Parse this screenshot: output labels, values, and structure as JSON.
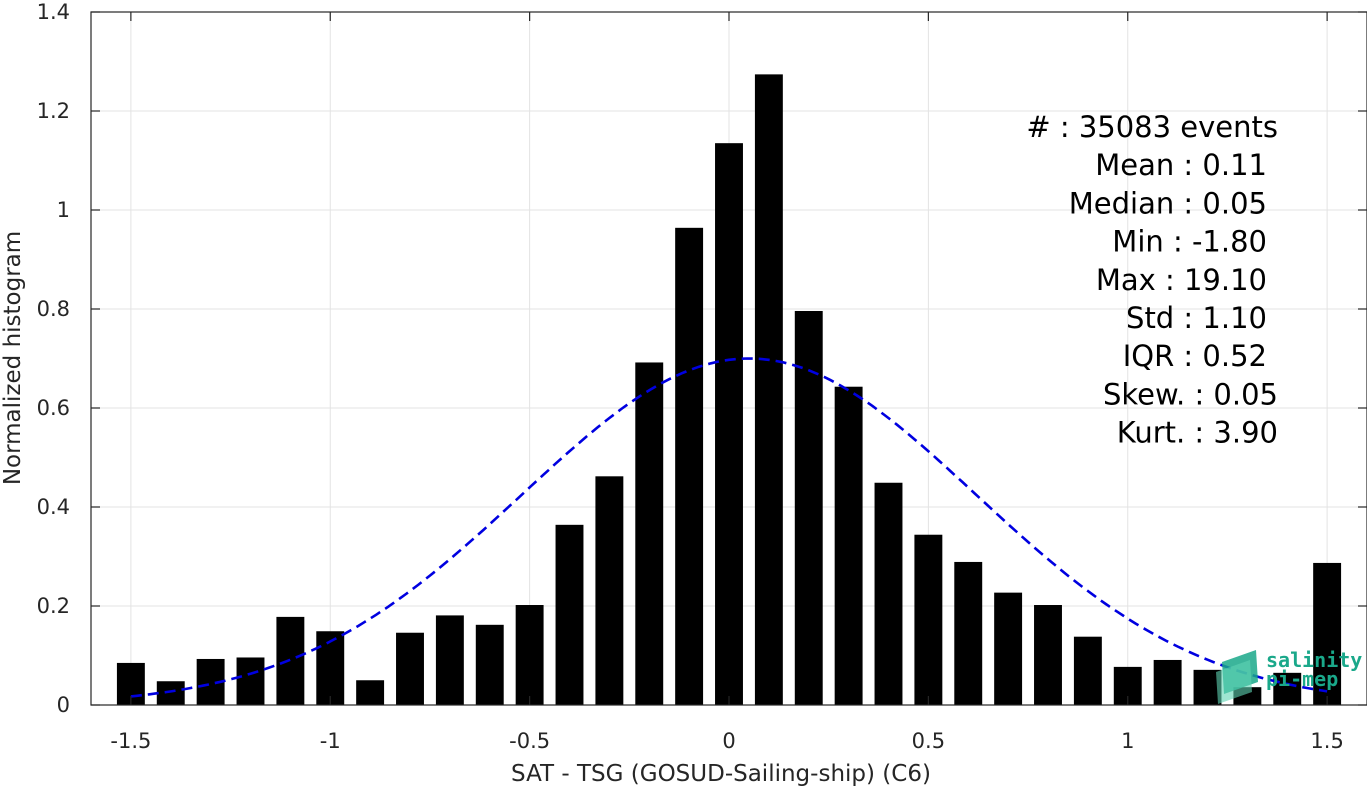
{
  "chart_data": {
    "type": "bar",
    "title": "",
    "xlabel": "SAT - TSG (GOSUD-Sailing-ship) (C6)",
    "ylabel": "Normalized histogram",
    "xlim": [
      -1.6,
      1.6
    ],
    "ylim": [
      0,
      1.4
    ],
    "xticks": [
      -1.5,
      -1,
      -0.5,
      0,
      0.5,
      1,
      1.5
    ],
    "xtick_labels": [
      "-1.5",
      "-1",
      "-0.5",
      "0",
      "0.5",
      "1",
      "1.5"
    ],
    "yticks": [
      0,
      0.2,
      0.4,
      0.6,
      0.8,
      1,
      1.2,
      1.4
    ],
    "ytick_labels": [
      "0",
      "0.2",
      "0.4",
      "0.6",
      "0.8",
      "1",
      "1.2",
      "1.4"
    ],
    "grid": true,
    "bar_color": "#000000",
    "bar_width": 0.07,
    "bins": [
      {
        "x": -1.5,
        "y": 0.085
      },
      {
        "x": -1.4,
        "y": 0.048
      },
      {
        "x": -1.3,
        "y": 0.093
      },
      {
        "x": -1.2,
        "y": 0.096
      },
      {
        "x": -1.1,
        "y": 0.178
      },
      {
        "x": -1.0,
        "y": 0.149
      },
      {
        "x": -0.9,
        "y": 0.05
      },
      {
        "x": -0.8,
        "y": 0.146
      },
      {
        "x": -0.7,
        "y": 0.181
      },
      {
        "x": -0.6,
        "y": 0.162
      },
      {
        "x": -0.5,
        "y": 0.202
      },
      {
        "x": -0.4,
        "y": 0.364
      },
      {
        "x": -0.3,
        "y": 0.462
      },
      {
        "x": -0.2,
        "y": 0.692
      },
      {
        "x": -0.1,
        "y": 0.964
      },
      {
        "x": 0.0,
        "y": 1.135
      },
      {
        "x": 0.1,
        "y": 1.274
      },
      {
        "x": 0.2,
        "y": 0.796
      },
      {
        "x": 0.3,
        "y": 0.643
      },
      {
        "x": 0.4,
        "y": 0.449
      },
      {
        "x": 0.5,
        "y": 0.344
      },
      {
        "x": 0.6,
        "y": 0.289
      },
      {
        "x": 0.7,
        "y": 0.227
      },
      {
        "x": 0.8,
        "y": 0.202
      },
      {
        "x": 0.9,
        "y": 0.138
      },
      {
        "x": 1.0,
        "y": 0.077
      },
      {
        "x": 1.1,
        "y": 0.091
      },
      {
        "x": 1.2,
        "y": 0.071
      },
      {
        "x": 1.3,
        "y": 0.036
      },
      {
        "x": 1.4,
        "y": 0.065
      },
      {
        "x": 1.5,
        "y": 0.287
      }
    ],
    "gaussian_fit": {
      "mean": 0.05,
      "std": 0.57,
      "peak": 0.7,
      "color": "#0000e0",
      "style": "dashed",
      "x_range": [
        -1.5,
        1.5
      ]
    },
    "stats": [
      {
        "label": "#  : 35083 events"
      },
      {
        "label": "Mean : 0.11"
      },
      {
        "label": "Median : 0.05"
      },
      {
        "label": "Min : -1.80"
      },
      {
        "label": "Max : 19.10"
      },
      {
        "label": "Std : 1.10"
      },
      {
        "label": "IQR : 0.52"
      },
      {
        "label": "Skew. : 0.05"
      },
      {
        "label": "Kurt. : 3.90"
      }
    ]
  },
  "logo": {
    "line1": "salinity",
    "line2": "pi-mep",
    "color": "#1aa88a"
  }
}
